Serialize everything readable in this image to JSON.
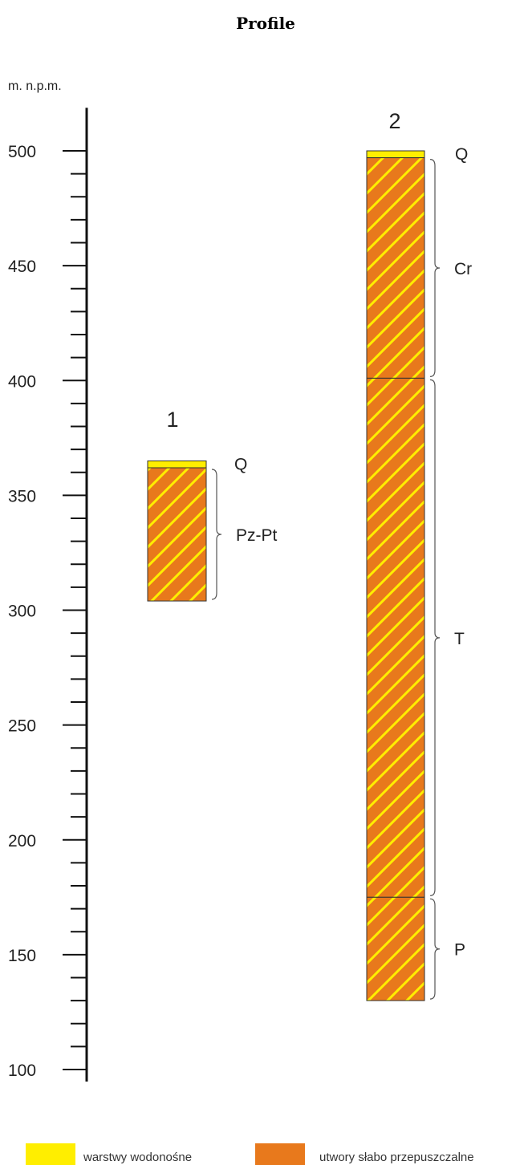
{
  "title": "Profile",
  "axis": {
    "unit_label": "m. n.p.m.",
    "min": 100,
    "max": 510,
    "major_step": 50,
    "minor_step": 10,
    "tick_labels": [
      "500",
      "450",
      "400",
      "350",
      "300",
      "250",
      "200",
      "150",
      "100"
    ]
  },
  "colors": {
    "aquifer": "#ffee00",
    "aquitard": "#e8791c",
    "hatch": "#ffee00",
    "outline": "#333333"
  },
  "wells": [
    {
      "label": "1",
      "layers": [
        {
          "unit": "Q",
          "type": "aquifer",
          "top": 365,
          "bottom": 362
        },
        {
          "unit": "Pz-Pt",
          "type": "aquitard",
          "top": 362,
          "bottom": 304
        }
      ],
      "brackets": [
        {
          "label": "Pz-Pt",
          "top": 362,
          "bottom": 304
        }
      ],
      "plain_labels": [
        {
          "label": "Q",
          "at": 364
        }
      ]
    },
    {
      "label": "2",
      "layers": [
        {
          "unit": "Q",
          "type": "aquifer",
          "top": 500,
          "bottom": 497
        },
        {
          "unit": "Cr",
          "type": "aquitard",
          "top": 497,
          "bottom": 401
        },
        {
          "unit": "T",
          "type": "aquitard",
          "top": 401,
          "bottom": 175
        },
        {
          "unit": "P",
          "type": "aquitard",
          "top": 175,
          "bottom": 130
        }
      ],
      "brackets": [
        {
          "label": "Cr",
          "top": 497,
          "bottom": 401
        },
        {
          "label": "T",
          "top": 401,
          "bottom": 175
        },
        {
          "label": "P",
          "top": 175,
          "bottom": 130
        }
      ],
      "plain_labels": [
        {
          "label": "Q",
          "at": 499
        }
      ]
    }
  ],
  "legend": [
    {
      "type": "aquifer",
      "label": "warstwy wodonośne"
    },
    {
      "type": "aquitard",
      "label": "utwory słabo przepuszczalne"
    }
  ]
}
